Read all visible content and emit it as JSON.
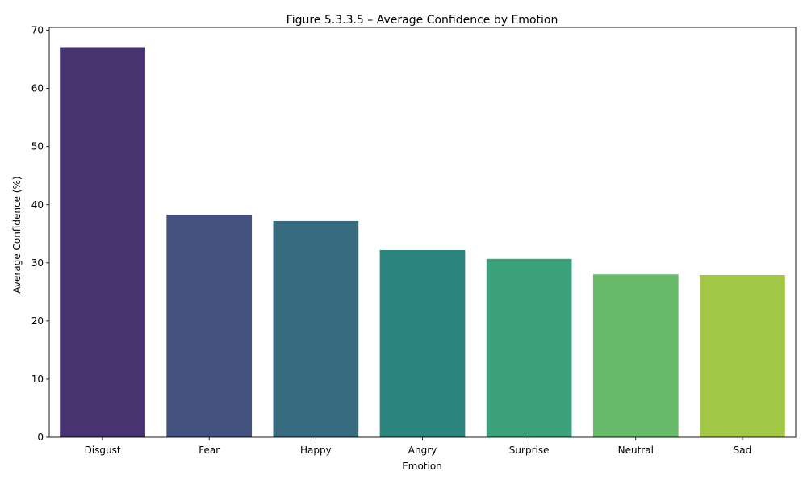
{
  "chart_data": {
    "type": "bar",
    "title": "Figure 5.3.3.5 – Average Confidence by Emotion",
    "xlabel": "Emotion",
    "ylabel": "Average Confidence (%)",
    "categories": [
      "Disgust",
      "Fear",
      "Happy",
      "Angry",
      "Surprise",
      "Neutral",
      "Sad"
    ],
    "values": [
      67.1,
      38.3,
      37.2,
      32.2,
      30.7,
      28.0,
      27.9
    ],
    "colors": [
      "#48326f",
      "#43517f",
      "#376b80",
      "#2d8580",
      "#3ca27c",
      "#67bb6a",
      "#a2c746"
    ],
    "ylim": [
      0,
      70.5
    ],
    "yticks": [
      0,
      10,
      20,
      30,
      40,
      50,
      60,
      70
    ],
    "grid": false,
    "legend": "none"
  }
}
